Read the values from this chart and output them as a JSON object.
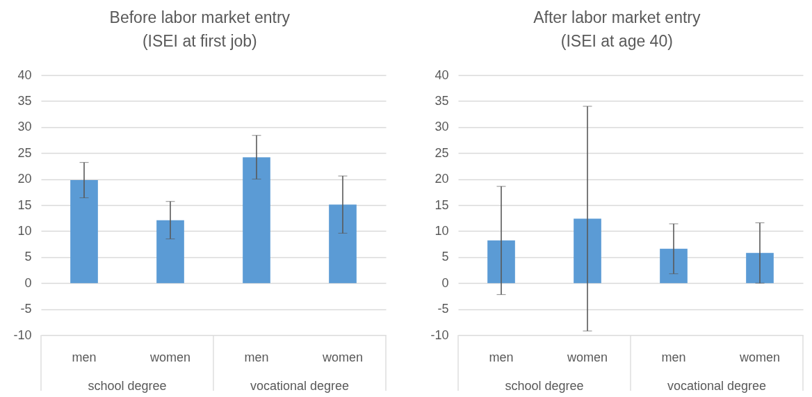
{
  "chart_data": [
    {
      "type": "bar",
      "title": "Before labor market entry",
      "subtitle": "(ISEI at first job)",
      "categories": [
        "men",
        "women",
        "men",
        "women"
      ],
      "values": [
        19.8,
        12.1,
        24.2,
        15.1
      ],
      "errors": [
        3.4,
        3.6,
        4.2,
        5.5
      ],
      "color": "#5b9bd5",
      "ylim": [
        -10,
        40
      ],
      "yticks": [
        -10,
        -5,
        0,
        5,
        10,
        15,
        20,
        25,
        30,
        35,
        40
      ],
      "grid": "y",
      "annotations": [
        "school degree",
        "vocational degree"
      ]
    },
    {
      "type": "bar",
      "title": "After labor market entry",
      "subtitle": "(ISEI at age 40)",
      "categories": [
        "men",
        "women",
        "men",
        "women"
      ],
      "values": [
        8.2,
        12.4,
        6.6,
        5.8
      ],
      "errors": [
        10.4,
        21.6,
        4.8,
        5.8
      ],
      "color": "#5b9bd5",
      "ylim": [
        -10,
        40
      ],
      "yticks": [
        -10,
        -5,
        0,
        5,
        10,
        15,
        20,
        25,
        30,
        35,
        40
      ],
      "grid": "y",
      "annotations": [
        "school degree",
        "vocational degree"
      ]
    }
  ]
}
